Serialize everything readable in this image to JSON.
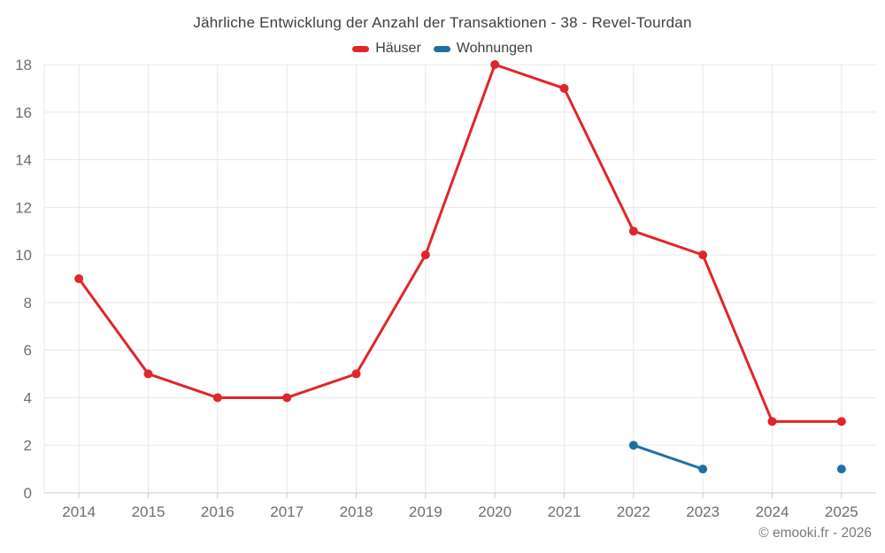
{
  "header": {
    "title": "Jährliche Entwicklung der Anzahl der Transaktionen - 38 - Revel-Tourdan"
  },
  "legend": {
    "items": [
      {
        "label": "Häuser",
        "color": "#e02629"
      },
      {
        "label": "Wohnungen",
        "color": "#1f6fa6"
      }
    ]
  },
  "footer": {
    "copyright": "© emooki.fr - 2026"
  },
  "chart_data": {
    "type": "line",
    "title": "Jährliche Entwicklung der Anzahl der Transaktionen - 38 - Revel-Tourdan",
    "xlabel": "",
    "ylabel": "",
    "categories": [
      "2014",
      "2015",
      "2016",
      "2017",
      "2018",
      "2019",
      "2020",
      "2021",
      "2022",
      "2023",
      "2024",
      "2025"
    ],
    "series": [
      {
        "name": "Häuser",
        "color": "#e02629",
        "values": [
          9,
          5,
          4,
          4,
          5,
          10,
          18,
          17,
          11,
          10,
          3,
          3
        ]
      },
      {
        "name": "Wohnungen",
        "color": "#1f6fa6",
        "values": [
          null,
          null,
          null,
          null,
          null,
          null,
          null,
          null,
          2,
          1,
          null,
          1
        ]
      }
    ],
    "ylim": [
      0,
      18
    ],
    "y_ticks": [
      0,
      2,
      4,
      6,
      8,
      10,
      12,
      14,
      16,
      18
    ],
    "grid": true,
    "legend_position": "top"
  },
  "colors": {
    "grid": "#e7e7e7",
    "axis": "#cccccc",
    "tick_label": "#6e6e6e"
  }
}
